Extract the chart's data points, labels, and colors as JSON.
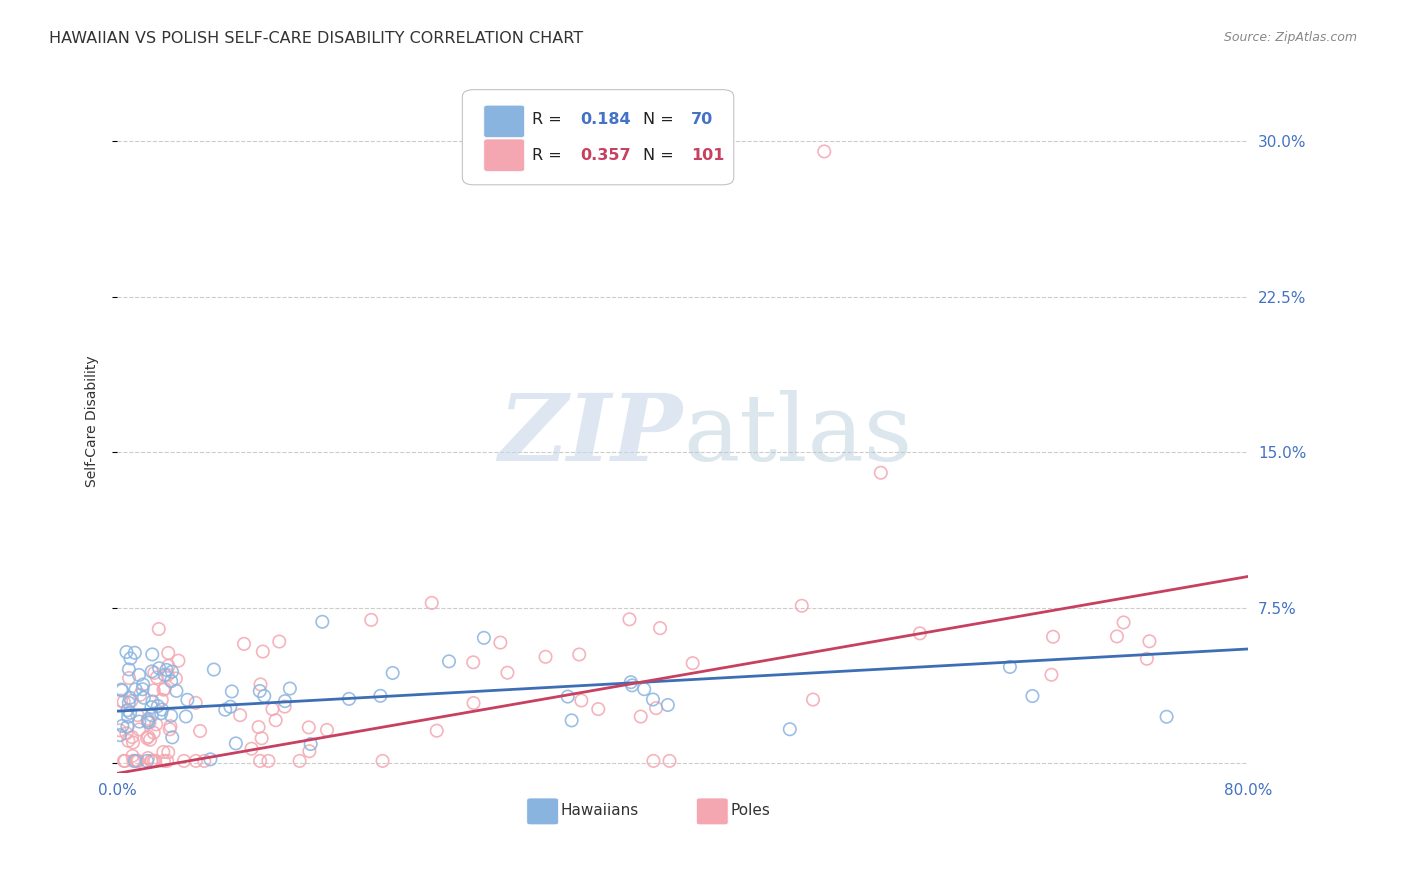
{
  "title": "HAWAIIAN VS POLISH SELF-CARE DISABILITY CORRELATION CHART",
  "source": "Source: ZipAtlas.com",
  "ylabel": "Self-Care Disability",
  "xlim": [
    0.0,
    0.8
  ],
  "ylim": [
    -0.005,
    0.335
  ],
  "yticks": [
    0.0,
    0.075,
    0.15,
    0.225,
    0.3
  ],
  "yticklabels_right": [
    "7.5%",
    "15.0%",
    "22.5%",
    "30.0%"
  ],
  "hawaiian_color": "#8ab4e0",
  "polish_color": "#f4a7b0",
  "hawaiian_edge_color": "#6090c8",
  "polish_edge_color": "#e07888",
  "hawaiian_line_color": "#3d6eb5",
  "polish_line_color": "#c84060",
  "R_hawaiian": 0.184,
  "N_hawaiian": 70,
  "R_polish": 0.357,
  "N_polish": 101,
  "background_color": "#ffffff",
  "grid_color": "#cccccc",
  "title_color": "#333333",
  "source_color": "#888888",
  "tick_label_color": "#4472c4",
  "legend_R_color": "#333333",
  "legend_val_color_1": "#4472c4",
  "legend_val_color_2": "#c84060",
  "watermark_color": "#c8d8e8",
  "watermark_alpha": 0.6
}
